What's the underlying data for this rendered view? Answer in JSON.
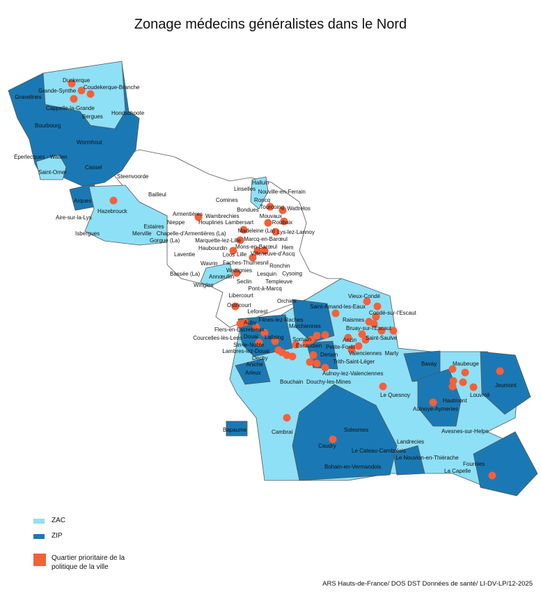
{
  "title": "Zonage médecins généralistes dans le Nord",
  "colors": {
    "zac": "#8ee0f6",
    "zip": "#1a79b4",
    "qpv": "#f5603a",
    "communes": "#ffffff",
    "border": "#555555"
  },
  "legend": [
    {
      "key": "zac",
      "label": "ZAC"
    },
    {
      "key": "zip",
      "label": "ZIP"
    },
    {
      "key": "qpv",
      "label": "Quartier prioritaire de la politique de la ville"
    }
  ],
  "map": {
    "labels": [
      "Dunkerque",
      "Grande-Synthe",
      "Coudekerque-Branche",
      "Gravelines",
      "Cappelle-la-Grande",
      "Bergues",
      "Hondschoote",
      "Bourbourg",
      "Wormhout",
      "Éperlecques - Watten",
      "Saint-Omer",
      "Cassel",
      "Steenvoorde",
      "Bailleul",
      "Arques",
      "Hazebrouck",
      "Aire-sur-la-Lys",
      "Isbergues",
      "Merville",
      "Estaires",
      "Gorgue (La)",
      "Nieppe",
      "Chapelle-d'Armentières (La)",
      "Armentières",
      "Halluin",
      "Linselles",
      "Nouville-en-Ferrain",
      "Comines",
      "Roncq",
      "Tourcoing",
      "Wattrelos",
      "Bondues",
      "Mouvaux",
      "Wambrechies",
      "Roubaix",
      "Lys-lez-Lannoy",
      "Houplines",
      "Lambersart",
      "Marquette-lez-Lille",
      "Marcq-en-Barœul",
      "Madeleine (La)",
      "Mons-en-Barœul",
      "Villeneuve-d'Ascq",
      "Lille",
      "Hem",
      "Haubourdin",
      "Loos",
      "Faches-Thumesnil",
      "Ronchin",
      "Wattignies",
      "Lesquin",
      "Laventie",
      "Wavrin",
      "Cysoing",
      "Bassée (La)",
      "Annœullin",
      "Seclin",
      "Templeuve",
      "Wingles",
      "Pont-à-Marcq",
      "Libercourt",
      "Ostricourt",
      "Leforest",
      "Orchies",
      "Vieux-Condé",
      "Saint-Amand-les-Eaux",
      "Condé-sur-l'Escaut",
      "Raismes",
      "Bruay-sur-l'Escaut",
      "Auby",
      "Flines-lez-Raches",
      "Marchiennes",
      "Flers-en-Escrebieux",
      "Douai",
      "Courcelles-lès-Lens",
      "Lallaing",
      "Somain",
      "Anzin",
      "Saint-Saulve",
      "Sin-le-Noble",
      "Escaudain",
      "Petite-Forêt",
      "Valenciennes",
      "Lambres-lez-Douai",
      "Dechy",
      "Denain",
      "Marly",
      "Aniche",
      "Trith-Saint-Léger",
      "Aulnoy-lez-Valenciennes",
      "Arleux",
      "Bouchain",
      "Douchy-les-Mines",
      "Bavay",
      "Maubeuge",
      "Jeumont",
      "Le Quesnoy",
      "Hautmont",
      "Louvroil",
      "Aulnoye-Aymeries",
      "Solesmes",
      "Bapaume",
      "Cambrai",
      "Caudry",
      "Landrecies",
      "Avesnes-sur-Helpe",
      "Le Cateau-Cambrésis",
      "Le Nouvion-en-Thiérache",
      "Fournies",
      "La Capelle",
      "Bohain-en-Vermandois"
    ],
    "qpv_count": 62
  },
  "footer": "ARS Hauts-de-France/ DOS DST Données de santé/ LI-DV-LP/12-2025"
}
